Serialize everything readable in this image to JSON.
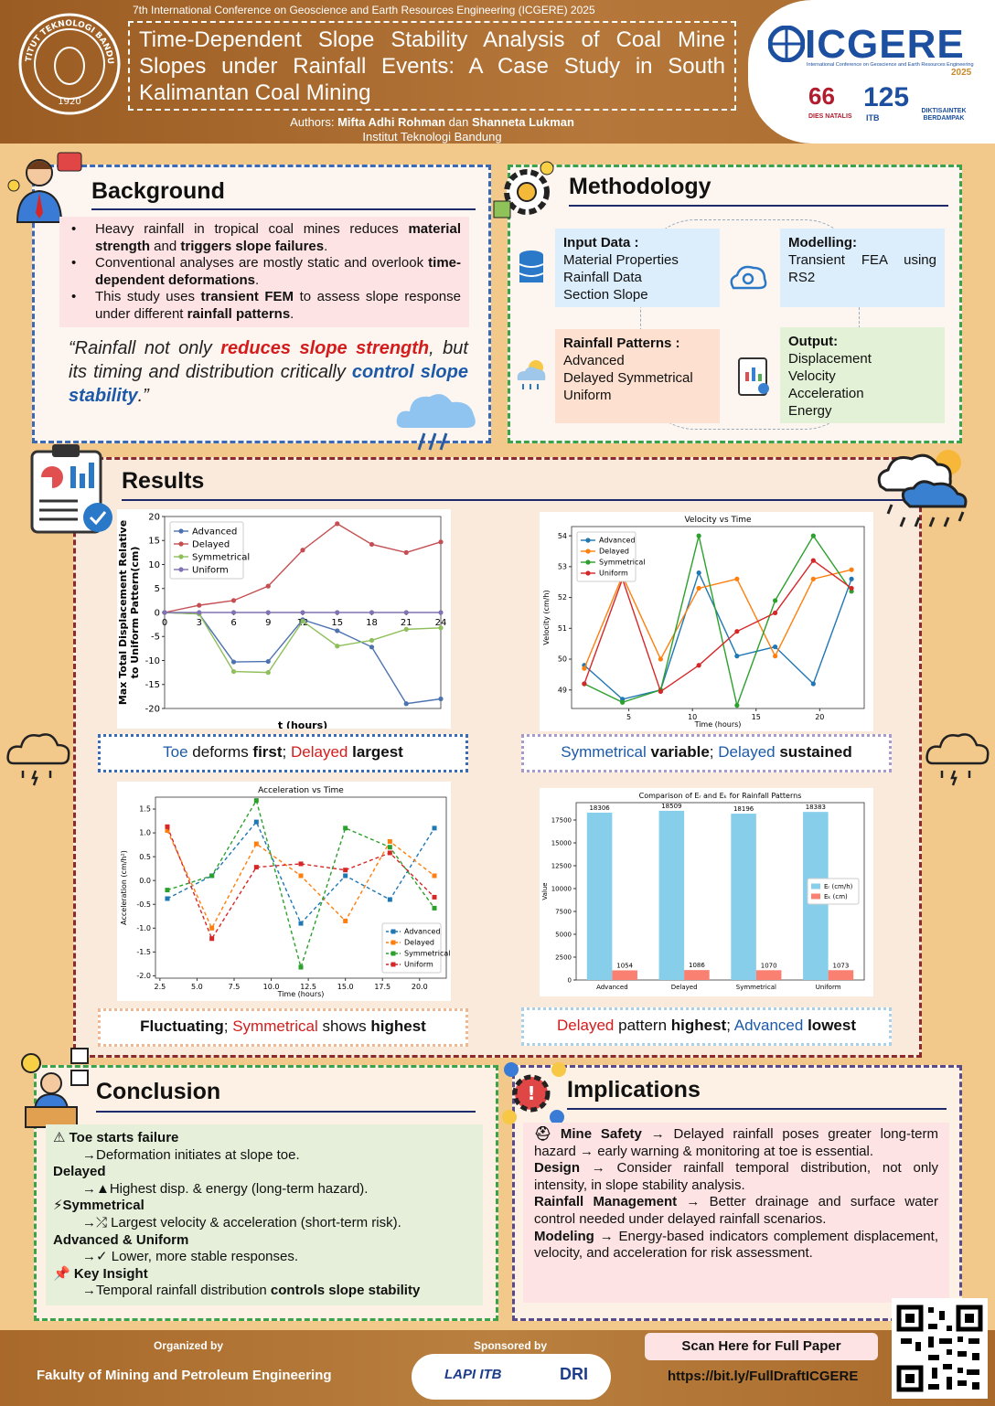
{
  "header": {
    "conference": "7th International Conference on Geoscience and Earth Resources Engineering (ICGERE) 2025",
    "title": "Time-Dependent Slope Stability Analysis of Coal Mine Slopes under Rainfall Events: A Case Study in South Kalimantan Coal Mining",
    "authors": [
      {
        "text": "Authors: "
      },
      {
        "text": "Mifta Adhi Rohman",
        "bold": true
      },
      {
        "text": " dan "
      },
      {
        "text": "Shanneta Lukman",
        "bold": true
      }
    ],
    "affiliation": "Institut Teknologi Bandung",
    "seal_text": "INSTITUT TEKNOLOGI BANDUNG",
    "seal_year": "1920",
    "logo": "ICGERE",
    "logo_sub": "International Conference on Geoscience and Earth Resources Engineering",
    "logo_year": "2025",
    "badges": [
      "DIES NATALIS",
      "ITB",
      "DIKTISAINTEK BERDAMPAK"
    ]
  },
  "background": {
    "title": "Background",
    "bullets": [
      [
        {
          "text": "Heavy rainfall in tropical coal mines reduces "
        },
        {
          "text": "material strength",
          "bold": true
        },
        {
          "text": " and "
        },
        {
          "text": "triggers slope failures",
          "bold": true
        },
        {
          "text": "."
        }
      ],
      [
        {
          "text": "Conventional analyses are mostly static and overlook "
        },
        {
          "text": "time-dependent deformations",
          "bold": true
        },
        {
          "text": "."
        }
      ],
      [
        {
          "text": "This study uses "
        },
        {
          "text": "transient FEM",
          "bold": true
        },
        {
          "text": " to assess slope response under different "
        },
        {
          "text": "rainfall patterns",
          "bold": true
        },
        {
          "text": "."
        }
      ]
    ],
    "quote": [
      {
        "text": "“Rainfall not only "
      },
      {
        "text": "reduces slope strength",
        "bold": true,
        "color": "#d41c1c"
      },
      {
        "text": ", but its timing and distribution critically "
      },
      {
        "text": "control slope stability",
        "bold": true,
        "color": "#1c5aa8"
      },
      {
        "text": ".”"
      }
    ]
  },
  "methodology": {
    "title": "Methodology",
    "boxes": [
      {
        "heading": "Input Data :",
        "lines": [
          "Material Properties",
          "Rainfall Data",
          "Section Slope"
        ]
      },
      {
        "heading": "Modelling:",
        "lines": [
          "Transient FEA using RS2"
        ]
      },
      {
        "heading": "Rainfall Patterns :",
        "lines": [
          "Advanced",
          "Delayed Symmetrical",
          "Uniform"
        ]
      },
      {
        "heading": "Output:",
        "lines": [
          "Displacement",
          "Velocity",
          "Acceleration",
          "Energy"
        ]
      }
    ]
  },
  "results": {
    "title": "Results",
    "captions": [
      [
        {
          "text": "Toe",
          "color": "#1c5aa8"
        },
        {
          "text": " deforms "
        },
        {
          "text": "first",
          "bold": true
        },
        {
          "text": "; "
        },
        {
          "text": "Delayed",
          "color": "#d41c1c"
        },
        {
          "text": " largest",
          "bold": true
        }
      ],
      [
        {
          "text": "Symmetrical",
          "color": "#1c5aa8"
        },
        {
          "text": " variable",
          "bold": true
        },
        {
          "text": "; "
        },
        {
          "text": "Delayed",
          "color": "#1c5aa8"
        },
        {
          "text": " sustained",
          "bold": true
        }
      ],
      [
        {
          "text": "Fluctuating",
          "bold": true
        },
        {
          "text": "; "
        },
        {
          "text": "Symmetrical",
          "color": "#d41c1c"
        },
        {
          "text": " shows "
        },
        {
          "text": "highest",
          "bold": true
        }
      ],
      [
        {
          "text": "Delayed",
          "color": "#d41c1c"
        },
        {
          "text": " pattern "
        },
        {
          "text": "highest",
          "bold": true
        },
        {
          "text": "; "
        },
        {
          "text": "Advanced",
          "color": "#1c5aa8"
        },
        {
          "text": " lowest",
          "bold": true
        }
      ]
    ]
  },
  "chart_data": [
    {
      "type": "line",
      "ylabel": [
        "Max Total Displacement Relative",
        "to Uniform Pattern(cm)"
      ],
      "xlabel": "t (hours)",
      "x": [
        0,
        3,
        6,
        9,
        12,
        15,
        18,
        21,
        24
      ],
      "xlim": [
        0,
        24
      ],
      "ylim": [
        -20,
        20
      ],
      "xticks": [
        0,
        3,
        6,
        9,
        12,
        15,
        18,
        21,
        24
      ],
      "yticks": [
        -20,
        -15,
        -10,
        -5,
        0,
        5,
        10,
        15,
        20
      ],
      "marker": "circle",
      "dashed": false,
      "legend": "upper left",
      "xaxis_at_zero": true,
      "series": [
        {
          "name": "Advanced",
          "color": "#4c72b0",
          "values": [
            0,
            -0.3,
            -10.3,
            -10.2,
            -1.5,
            -3.8,
            -7.2,
            -19,
            -18
          ]
        },
        {
          "name": "Delayed",
          "color": "#c44e52",
          "values": [
            0,
            1.5,
            2.5,
            5.5,
            13,
            18.5,
            14.2,
            12.5,
            14.7
          ]
        },
        {
          "name": "Symmetrical",
          "color": "#8fbf5a",
          "values": [
            0,
            -0.3,
            -12.3,
            -12.5,
            -1.8,
            -7,
            -5.8,
            -3.5,
            -3.2
          ]
        },
        {
          "name": "Uniform",
          "color": "#8172b2",
          "values": [
            0,
            0,
            0,
            0,
            0,
            0,
            0,
            0,
            0
          ]
        }
      ]
    },
    {
      "type": "line",
      "title": "Velocity vs Time",
      "xlabel": "Time (hours)",
      "ylabel": "Velocity (cm/h)",
      "x": [
        1.5,
        4.5,
        7.5,
        10.5,
        13.5,
        16.5,
        19.5,
        22.5
      ],
      "xlim": [
        0.5,
        23.5
      ],
      "ylim": [
        48.4,
        54.3
      ],
      "xticks": [
        5,
        10,
        15,
        20
      ],
      "yticks": [
        49,
        50,
        51,
        52,
        53,
        54
      ],
      "marker": "circle",
      "dashed": false,
      "legend": "upper left",
      "series": [
        {
          "name": "Advanced",
          "color": "#1f77b4",
          "values": [
            49.8,
            48.7,
            49.0,
            52.8,
            50.1,
            50.4,
            49.2,
            52.6
          ]
        },
        {
          "name": "Delayed",
          "color": "#ff7f0e",
          "values": [
            49.7,
            52.7,
            50.0,
            52.3,
            52.6,
            50.1,
            52.6,
            52.9
          ]
        },
        {
          "name": "Symmetrical",
          "color": "#2ca02c",
          "values": [
            49.2,
            48.6,
            49.0,
            54.0,
            48.5,
            51.9,
            54.0,
            52.2
          ]
        },
        {
          "name": "Uniform",
          "color": "#d62728",
          "values": [
            49.2,
            52.6,
            48.95,
            49.8,
            50.9,
            51.5,
            53.2,
            52.3
          ]
        }
      ]
    },
    {
      "type": "line",
      "title": "Acceleration vs Time",
      "xlabel": "Time (hours)",
      "ylabel": "Acceleration (cm/h²)",
      "x": [
        3,
        6,
        9,
        12,
        15,
        18,
        21
      ],
      "xlim": [
        2.2,
        21.8
      ],
      "ylim": [
        -2.05,
        1.75
      ],
      "xticks": [
        2.5,
        {
          "value": 5,
          "label": "5.0"
        },
        7.5,
        {
          "value": 10,
          "label": "10.0"
        },
        12.5,
        {
          "value": 15,
          "label": "15.0"
        },
        17.5,
        {
          "value": 20,
          "label": "20.0"
        }
      ],
      "yticks": [
        {
          "value": -2,
          "label": "-2.0"
        },
        -1.5,
        {
          "value": -1,
          "label": "-1.0"
        },
        -0.5,
        {
          "value": 0,
          "label": "0.0"
        },
        0.5,
        {
          "value": 1,
          "label": "1.0"
        },
        1.5
      ],
      "marker": "square",
      "dashed": true,
      "legend": "lower right",
      "series": [
        {
          "name": "Advanced",
          "color": "#1f77b4",
          "values": [
            -0.38,
            0.1,
            1.23,
            -0.9,
            0.1,
            -0.4,
            1.1
          ]
        },
        {
          "name": "Delayed",
          "color": "#ff7f0e",
          "values": [
            1.05,
            -1.0,
            0.77,
            0.1,
            -0.85,
            0.82,
            0.1
          ]
        },
        {
          "name": "Symmetrical",
          "color": "#2ca02c",
          "values": [
            -0.2,
            0.1,
            1.68,
            -1.82,
            1.1,
            0.7,
            -0.58
          ]
        },
        {
          "name": "Uniform",
          "color": "#d62728",
          "values": [
            1.13,
            -1.22,
            0.28,
            0.35,
            0.22,
            0.58,
            -0.35
          ]
        }
      ]
    },
    {
      "type": "bar",
      "title": "Comparison of Eᵣ and Eₖ for Rainfall Patterns",
      "ylabel": "Value",
      "categories": [
        "Advanced",
        "Delayed",
        "Symmetrical",
        "Uniform"
      ],
      "ylim": [
        0,
        19400
      ],
      "yticks": [
        0,
        2500,
        5000,
        7500,
        10000,
        12500,
        15000,
        17500
      ],
      "legend": "center right",
      "series": [
        {
          "name": "Eᵣ (cm/h)",
          "color": "#87ceeb",
          "values": [
            18306,
            18509,
            18196,
            18383
          ]
        },
        {
          "name": "Eₖ (cm)",
          "color": "#fa8072",
          "values": [
            1054,
            1086,
            1070,
            1073
          ]
        }
      ]
    }
  ],
  "conclusion": {
    "title": "Conclusion",
    "items": [
      {
        "heading": "⚠ Toe starts failure",
        "detail": [
          {
            "text": "→Deformation initiates at slope toe."
          }
        ]
      },
      {
        "heading": "Delayed",
        "detail": [
          {
            "text": "→▲Highest disp. & energy (long-term  hazard)."
          }
        ]
      },
      {
        "heading": "⚡Symmetrical",
        "detail": [
          {
            "text": "→⤮ Largest velocity & acceleration (short-term risk)."
          }
        ]
      },
      {
        "heading": "Advanced & Uniform",
        "detail": [
          {
            "text": "→✓ Lower, more stable responses."
          }
        ]
      },
      {
        "heading": "📌 Key Insight",
        "detail": [
          {
            "text": "→Temporal rainfall distribution "
          },
          {
            "text": "controls slope stability",
            "bold": true
          }
        ]
      }
    ]
  },
  "implications": {
    "title": "Implications",
    "items": [
      [
        {
          "text": "⛑ Mine Safety",
          "bold": true
        },
        {
          "text": " → Delayed rainfall poses greater long-term hazard → early warning & monitoring at toe is essential."
        }
      ],
      [
        {
          "text": "Design",
          "bold": true
        },
        {
          "text": " → Consider rainfall temporal distribution, not only intensity, in slope stability analysis."
        }
      ],
      [
        {
          "text": "Rainfall Management",
          "bold": true
        },
        {
          "text": " → Better drainage and surface water control needed under delayed rainfall scenarios."
        }
      ],
      [
        {
          "text": "Modeling",
          "bold": true
        },
        {
          "text": " → Energy-based indicators complement displacement, velocity, and acceleration for risk assessment."
        }
      ]
    ]
  },
  "footer": {
    "organized_label": "Organized by",
    "organizer": "Fakulty of Mining and Petroleum Engineering",
    "sponsored_label": "Sponsored by",
    "sponsors": [
      "LAPI ITB",
      "DRI"
    ],
    "scan": "Scan Here for Full Paper",
    "url": "https://bit.ly/FullDraftICGERE"
  }
}
